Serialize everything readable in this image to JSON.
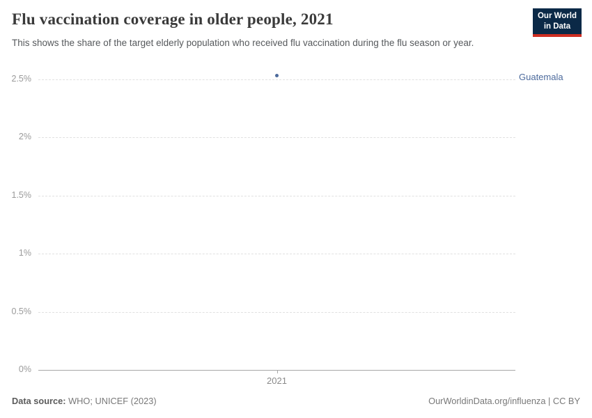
{
  "header": {
    "title": "Flu vaccination coverage in older people, 2021",
    "subtitle": "This shows the share of the target elderly population who received flu vaccination during the flu season or year.",
    "logo": {
      "line1": "Our World",
      "line2": "in Data",
      "background_color": "#0b2947",
      "stripe_color": "#cf2e22"
    }
  },
  "chart_data": {
    "type": "scatter",
    "title": "Flu vaccination coverage in older people, 2021",
    "x": [
      2021
    ],
    "series": [
      {
        "name": "Guatemala",
        "color": "#4C6A9C",
        "values": [
          2.53
        ]
      }
    ],
    "xlabel": "",
    "ylabel": "",
    "ylim": [
      0,
      2.5
    ],
    "yticks": [
      {
        "value": 0,
        "label": "0%"
      },
      {
        "value": 0.5,
        "label": "0.5%"
      },
      {
        "value": 1,
        "label": "1%"
      },
      {
        "value": 1.5,
        "label": "1.5%"
      },
      {
        "value": 2,
        "label": "2%"
      },
      {
        "value": 2.5,
        "label": "2.5%"
      }
    ],
    "xticks": [
      {
        "value": 2021,
        "label": "2021"
      }
    ],
    "grid": "horizontal-dashed",
    "legend_position": "right-of-point"
  },
  "footer": {
    "source_label": "Data source:",
    "source_value": " WHO; UNICEF (2023)",
    "credit": "OurWorldinData.org/influenza | CC BY"
  }
}
